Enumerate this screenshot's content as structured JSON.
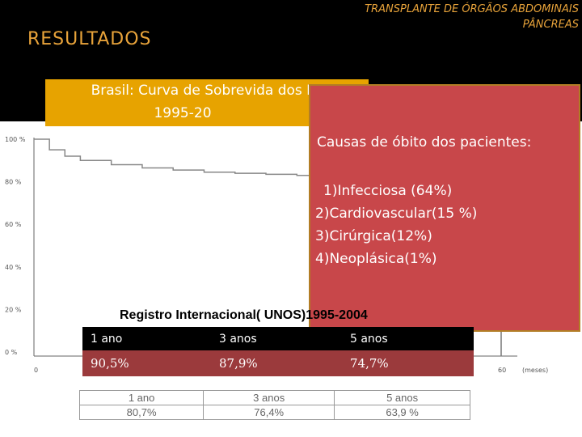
{
  "header": {
    "top_right_line1": "TRANSPLANTE DE ÓRGÃOS ABDOMINAIS",
    "top_right_line2": "PÂNCREAS",
    "section_title": "RESULTADOS"
  },
  "banner": {
    "line1": "Brasil: Curva de Sobrevida dos P",
    "line2": "1995-20"
  },
  "causes": {
    "title": "Causas de óbito dos pacientes:",
    "items": [
      "1)Infecciosa (64%)",
      "2)Cardiovascular(15 %)",
      "3)Cirúrgica(12%)",
      "4)Neoplásica(1%)"
    ]
  },
  "registry_label": "Registro Internacional( UNOS)1995-2004",
  "unos_table": {
    "headers": [
      "1 ano",
      "3 anos",
      "5 anos"
    ],
    "values": [
      "90,5%",
      "87,9%",
      "74,7%"
    ]
  },
  "brazil_table": {
    "headers": [
      "1 ano",
      "3 anos",
      "5 anos"
    ],
    "values": [
      "80,7%",
      "76,4%",
      "63,9 %"
    ]
  },
  "chart_data": {
    "type": "line",
    "y_ticks": [
      "100 %",
      "80 %",
      "60 %",
      "40 %",
      "20 %",
      "0 %"
    ],
    "x_ticks": [
      "0",
      "60",
      "(meses)"
    ],
    "ylim": [
      0,
      100
    ],
    "xlim": [
      0,
      60
    ],
    "series": [
      {
        "x": [
          0,
          2,
          4,
          6,
          10,
          14,
          18,
          22,
          26,
          30,
          34,
          38
        ],
        "y": [
          100,
          95,
          92,
          90,
          88,
          86.5,
          85.5,
          84.5,
          84,
          83.5,
          83,
          82.5
        ]
      }
    ]
  }
}
